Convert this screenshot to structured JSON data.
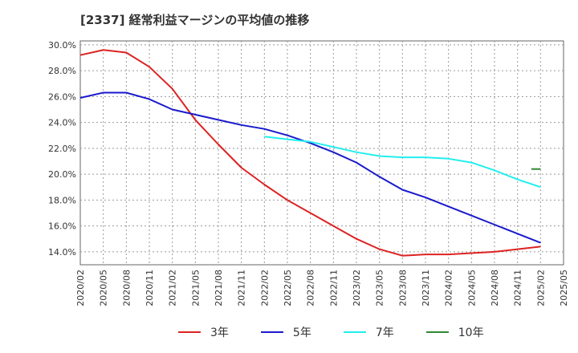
{
  "chart_data": {
    "type": "line",
    "title": "[2337]  経常利益マージンの平均値の推移",
    "ylim": [
      13.0,
      30.3
    ],
    "yticks": [
      14,
      16,
      18,
      20,
      22,
      24,
      26,
      28,
      30
    ],
    "ytick_labels": [
      "14.0%",
      "16.0%",
      "18.0%",
      "20.0%",
      "22.0%",
      "24.0%",
      "26.0%",
      "28.0%",
      "30.0%"
    ],
    "xtick_labels": [
      "2020/02",
      "2020/05",
      "2020/08",
      "2020/11",
      "2021/02",
      "2021/05",
      "2021/08",
      "2021/11",
      "2022/02",
      "2022/05",
      "2022/08",
      "2022/11",
      "2023/02",
      "2023/05",
      "2023/08",
      "2023/11",
      "2024/02",
      "2024/05",
      "2024/08",
      "2024/11",
      "2025/02",
      "2025/05"
    ],
    "grid": true,
    "legend_position": "bottom",
    "series": [
      {
        "name": "3年",
        "color": "#dd2222",
        "x": [
          0,
          1,
          2,
          3,
          4,
          5,
          6,
          7,
          8,
          9,
          10,
          11,
          12,
          13,
          14,
          15,
          16,
          17,
          18,
          19,
          20
        ],
        "y": [
          29.2,
          29.6,
          29.4,
          28.3,
          26.6,
          24.2,
          22.3,
          20.5,
          19.2,
          18.0,
          17.0,
          16.0,
          15.0,
          14.2,
          13.7,
          13.8,
          13.8,
          13.9,
          14.0,
          14.2,
          14.4
        ]
      },
      {
        "name": "5年",
        "color": "#1a1acc",
        "x": [
          0,
          1,
          2,
          3,
          4,
          5,
          6,
          7,
          8,
          9,
          10,
          11,
          12,
          13,
          14,
          15,
          16,
          17,
          18,
          19,
          20
        ],
        "y": [
          25.9,
          26.3,
          26.3,
          25.8,
          25.0,
          24.6,
          24.2,
          23.8,
          23.5,
          23.0,
          22.4,
          21.7,
          20.9,
          19.8,
          18.8,
          18.2,
          17.5,
          16.8,
          16.1,
          15.4,
          14.7
        ]
      },
      {
        "name": "7年",
        "color": "#22eeee",
        "x": [
          8,
          9,
          10,
          11,
          12,
          13,
          14,
          15,
          16,
          17,
          18,
          19,
          20
        ],
        "y": [
          22.9,
          22.7,
          22.5,
          22.1,
          21.7,
          21.4,
          21.3,
          21.3,
          21.2,
          20.9,
          20.3,
          19.6,
          19.0
        ]
      },
      {
        "name": "10年",
        "color": "#338833",
        "x": [
          19.6,
          20
        ],
        "y": [
          20.4,
          20.4
        ]
      }
    ]
  }
}
